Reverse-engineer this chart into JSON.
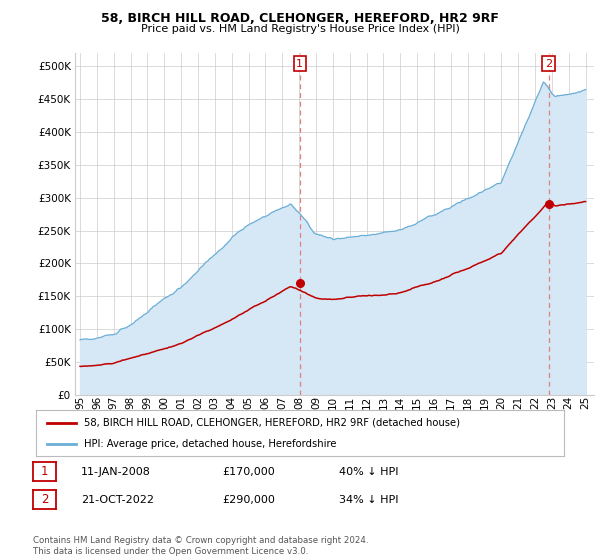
{
  "title": "58, BIRCH HILL ROAD, CLEHONGER, HEREFORD, HR2 9RF",
  "subtitle": "Price paid vs. HM Land Registry's House Price Index (HPI)",
  "legend_line1": "58, BIRCH HILL ROAD, CLEHONGER, HEREFORD, HR2 9RF (detached house)",
  "legend_line2": "HPI: Average price, detached house, Herefordshire",
  "annotation1_label": "1",
  "annotation1_date": "11-JAN-2008",
  "annotation1_price": "£170,000",
  "annotation1_hpi": "40% ↓ HPI",
  "annotation1_year": 2008.04,
  "annotation1_value": 170000,
  "annotation2_label": "2",
  "annotation2_date": "21-OCT-2022",
  "annotation2_price": "£290,000",
  "annotation2_hpi": "34% ↓ HPI",
  "annotation2_year": 2022.8,
  "annotation2_value": 290000,
  "ytick_values": [
    0,
    50000,
    100000,
    150000,
    200000,
    250000,
    300000,
    350000,
    400000,
    450000,
    500000
  ],
  "ytick_labels": [
    "£0",
    "£50K",
    "£100K",
    "£150K",
    "£200K",
    "£250K",
    "£300K",
    "£350K",
    "£400K",
    "£450K",
    "£500K"
  ],
  "ylim": [
    0,
    520000
  ],
  "xlim_start": 1994.7,
  "xlim_end": 2025.5,
  "hpi_color": "#6baed6",
  "hpi_fill_color": "#d6e8f5",
  "price_color": "#c00000",
  "dashed_color": "#e08080",
  "grid_color": "#cccccc",
  "background_color": "#ffffff",
  "footer_text": "Contains HM Land Registry data © Crown copyright and database right 2024.\nThis data is licensed under the Open Government Licence v3.0.",
  "xtick_years": [
    1995,
    1996,
    1997,
    1998,
    1999,
    2000,
    2001,
    2002,
    2003,
    2004,
    2005,
    2006,
    2007,
    2008,
    2009,
    2010,
    2011,
    2012,
    2013,
    2014,
    2015,
    2016,
    2017,
    2018,
    2019,
    2020,
    2021,
    2022,
    2023,
    2024,
    2025
  ]
}
